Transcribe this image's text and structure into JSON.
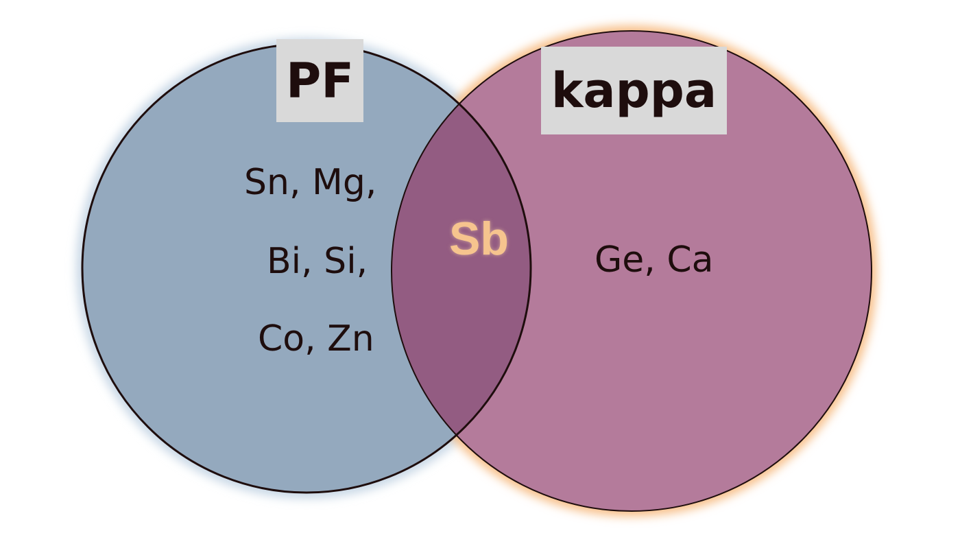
{
  "sets": [
    {
      "id": "pf",
      "label": "PF",
      "fill": "#94a9be",
      "glow": "#c9d8e6",
      "only_items": [
        "Sn, Mg,",
        "Bi, Si,",
        "Co, Zn"
      ]
    },
    {
      "id": "kappa",
      "label": "kappa",
      "fill": "#b47b9b",
      "glow": "#f7c08a",
      "only_items": [
        "Ge, Ca"
      ]
    }
  ],
  "intersection": {
    "label": "Sb",
    "fill": "#935c82",
    "text_color": "#f6c48e"
  },
  "colors": {
    "outline": "#1e0d0d",
    "label_box": "#d9d9d9",
    "text": "#1e0d0d"
  }
}
